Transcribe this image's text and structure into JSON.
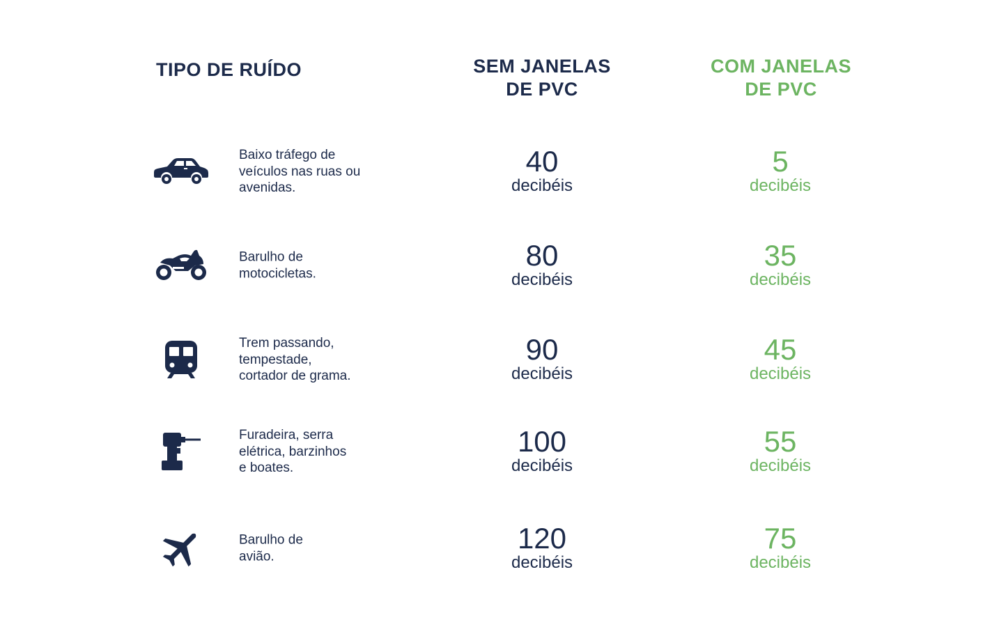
{
  "header": {
    "type_label": "TIPO DE RUÍDO",
    "without_label_line1": "SEM JANELAS",
    "without_label_line2": "DE PVC",
    "with_label_line1": "COM JANELAS",
    "with_label_line2": "DE PVC"
  },
  "colors": {
    "navy": "#1c2a4a",
    "green": "#6cb461"
  },
  "rows": [
    {
      "icon": "car-icon",
      "description": [
        "Baixo tráfego de",
        "veículos nas ruas ou",
        "avenidas."
      ],
      "without_value": "40",
      "without_unit": "decibéis",
      "with_value": "5",
      "with_unit": "decibéis"
    },
    {
      "icon": "motorcycle-icon",
      "description": [
        "Barulho de",
        "motocicletas."
      ],
      "without_value": "80",
      "without_unit": "decibéis",
      "with_value": "35",
      "with_unit": "decibéis"
    },
    {
      "icon": "train-icon",
      "description": [
        "Trem passando,",
        "tempestade,",
        "cortador de grama."
      ],
      "without_value": "90",
      "without_unit": "decibéis",
      "with_value": "45",
      "with_unit": "decibéis"
    },
    {
      "icon": "drill-icon",
      "description": [
        "Furadeira, serra",
        "elétrica, barzinhos",
        "e boates."
      ],
      "without_value": "100",
      "without_unit": "decibéis",
      "with_value": "55",
      "with_unit": "decibéis"
    },
    {
      "icon": "airplane-icon",
      "description": [
        "Barulho de",
        "avião."
      ],
      "without_value": "120",
      "without_unit": "decibéis",
      "with_value": "75",
      "with_unit": "decibéis"
    }
  ]
}
